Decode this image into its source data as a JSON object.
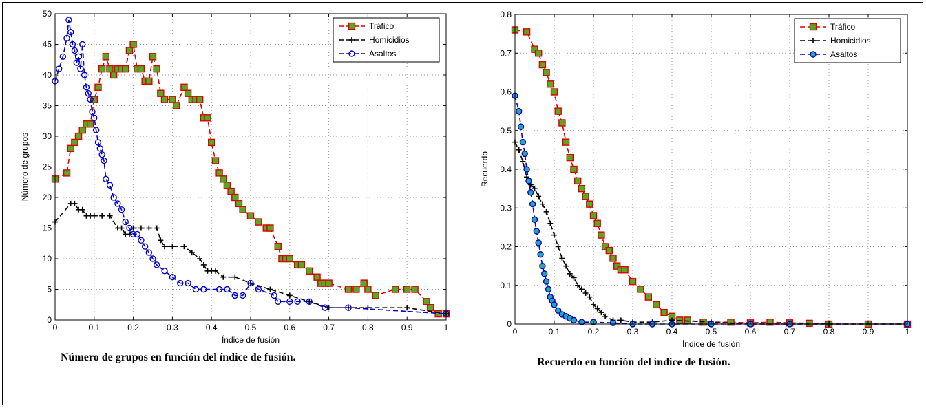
{
  "charts": {
    "left": {
      "caption": "Número de grupos en función del índice de fusión."
    },
    "right": {
      "caption": "Recuerdo en función del índice de fusión."
    }
  },
  "chart_data": [
    {
      "type": "line",
      "xlabel": "Índice de fusión",
      "ylabel": "Número de grupos",
      "xlim": [
        0,
        1
      ],
      "ylim": [
        0,
        50
      ],
      "xticks": [
        0,
        0.1,
        0.2,
        0.3,
        0.4,
        0.5,
        0.6,
        0.7,
        0.8,
        0.9,
        1
      ],
      "xtick_labels": [
        "0",
        "0.1",
        "0.2",
        "0.3",
        "0.4",
        "0.5",
        "0.6",
        "0.7",
        "0.8",
        "0.9",
        "1"
      ],
      "yticks": [
        0,
        5,
        10,
        15,
        20,
        25,
        30,
        35,
        40,
        45,
        50
      ],
      "ytick_labels": [
        "0",
        "5",
        "10",
        "15",
        "20",
        "25",
        "30",
        "35",
        "40",
        "45",
        "50"
      ],
      "grid": true,
      "legend": "top-right",
      "series": [
        {
          "name": "Tráfico",
          "color": "#dd0000",
          "marker": "square",
          "marker_fill": "#55aa22",
          "x": [
            0,
            0.03,
            0.04,
            0.05,
            0.06,
            0.07,
            0.08,
            0.09,
            0.1,
            0.11,
            0.12,
            0.13,
            0.14,
            0.15,
            0.16,
            0.17,
            0.18,
            0.19,
            0.2,
            0.21,
            0.22,
            0.23,
            0.24,
            0.25,
            0.26,
            0.27,
            0.28,
            0.3,
            0.31,
            0.33,
            0.34,
            0.35,
            0.36,
            0.37,
            0.38,
            0.39,
            0.4,
            0.41,
            0.42,
            0.43,
            0.44,
            0.45,
            0.46,
            0.47,
            0.48,
            0.5,
            0.52,
            0.54,
            0.55,
            0.57,
            0.58,
            0.59,
            0.6,
            0.62,
            0.63,
            0.65,
            0.67,
            0.68,
            0.69,
            0.7,
            0.75,
            0.77,
            0.79,
            0.8,
            0.82,
            0.87,
            0.9,
            0.92,
            0.95,
            0.96,
            0.98,
            1
          ],
          "values": [
            23,
            24,
            28,
            29,
            30,
            31,
            32,
            32,
            36,
            38,
            41,
            43,
            41,
            40,
            41,
            41,
            41,
            44,
            45,
            41,
            41,
            39,
            39,
            43,
            41,
            37,
            36,
            36,
            35,
            38,
            37,
            36,
            36,
            36,
            33,
            33,
            29,
            26,
            24,
            23,
            22,
            21,
            20,
            19,
            18,
            17,
            16,
            15,
            15,
            12,
            10,
            10,
            10,
            9,
            9,
            8,
            7,
            6,
            6,
            6,
            5,
            5,
            6,
            5,
            4,
            5,
            5,
            5,
            3,
            2,
            1,
            1
          ]
        },
        {
          "name": "Homicidios",
          "color": "#000000",
          "marker": "plus",
          "x": [
            0,
            0.04,
            0.05,
            0.06,
            0.07,
            0.08,
            0.09,
            0.1,
            0.12,
            0.14,
            0.16,
            0.17,
            0.18,
            0.19,
            0.2,
            0.22,
            0.24,
            0.26,
            0.27,
            0.28,
            0.3,
            0.33,
            0.35,
            0.37,
            0.38,
            0.39,
            0.4,
            0.41,
            0.43,
            0.46,
            0.5,
            0.55,
            0.6,
            0.65,
            0.7,
            0.75,
            0.8,
            0.9,
            1
          ],
          "values": [
            16,
            19,
            19,
            18,
            18,
            17,
            17,
            17,
            17,
            17,
            15,
            15,
            14,
            14,
            15,
            15,
            15,
            15,
            13,
            12,
            12,
            12,
            11,
            10,
            9,
            8,
            8,
            8,
            7,
            7,
            6,
            5,
            4,
            3,
            2,
            2,
            2,
            2,
            1
          ]
        },
        {
          "name": "Asaltos",
          "color": "#0000cc",
          "marker": "circle",
          "marker_fill": "none",
          "x": [
            0,
            0.01,
            0.02,
            0.03,
            0.035,
            0.04,
            0.045,
            0.05,
            0.055,
            0.06,
            0.065,
            0.07,
            0.075,
            0.08,
            0.085,
            0.09,
            0.095,
            0.1,
            0.105,
            0.11,
            0.115,
            0.12,
            0.125,
            0.13,
            0.14,
            0.15,
            0.16,
            0.17,
            0.18,
            0.19,
            0.2,
            0.21,
            0.22,
            0.23,
            0.24,
            0.25,
            0.26,
            0.28,
            0.3,
            0.32,
            0.34,
            0.36,
            0.38,
            0.42,
            0.44,
            0.46,
            0.48,
            0.5,
            0.52,
            0.56,
            0.57,
            0.6,
            0.62,
            0.65,
            0.69,
            0.75,
            1
          ],
          "values": [
            39,
            41,
            43,
            46,
            49,
            47,
            45,
            44,
            42,
            43,
            41,
            45,
            40,
            38,
            37,
            36,
            34,
            33,
            31,
            29,
            28,
            27,
            26,
            23,
            22,
            20,
            19,
            18,
            16,
            15,
            14,
            14,
            13,
            12,
            11,
            10,
            9,
            8,
            7,
            6,
            6,
            5,
            5,
            5,
            5,
            4,
            4,
            6,
            5,
            4,
            3,
            3,
            3,
            3,
            2,
            2,
            1
          ]
        }
      ]
    },
    {
      "type": "line",
      "xlabel": "Índice de fusión",
      "ylabel": "Recuerdo",
      "xlim": [
        0,
        1
      ],
      "ylim": [
        0,
        0.8
      ],
      "xticks": [
        0,
        0.1,
        0.2,
        0.3,
        0.4,
        0.5,
        0.6,
        0.7,
        0.8,
        0.9,
        1
      ],
      "xtick_labels": [
        "0",
        "0.1",
        "0.2",
        "0.3",
        "0.4",
        "0.5",
        "0.6",
        "0.7",
        "0.8",
        "0.9",
        "1"
      ],
      "yticks": [
        0,
        0.1,
        0.2,
        0.3,
        0.4,
        0.5,
        0.6,
        0.7,
        0.8
      ],
      "ytick_labels": [
        "0",
        "0.1",
        "0.2",
        "0.3",
        "0.4",
        "0.5",
        "0.6",
        "0.7",
        "0.8"
      ],
      "grid": true,
      "legend": "top-right",
      "series": [
        {
          "name": "Tráfico",
          "color": "#dd0000",
          "marker": "square",
          "marker_fill": "#55aa22",
          "x": [
            0,
            0.03,
            0.05,
            0.06,
            0.07,
            0.08,
            0.09,
            0.1,
            0.11,
            0.12,
            0.13,
            0.14,
            0.15,
            0.16,
            0.17,
            0.18,
            0.19,
            0.2,
            0.21,
            0.22,
            0.23,
            0.24,
            0.25,
            0.26,
            0.27,
            0.28,
            0.3,
            0.32,
            0.34,
            0.36,
            0.38,
            0.4,
            0.42,
            0.44,
            0.48,
            0.55,
            0.6,
            0.65,
            0.7,
            0.75,
            0.8,
            0.9,
            1
          ],
          "values": [
            0.76,
            0.755,
            0.71,
            0.7,
            0.67,
            0.65,
            0.62,
            0.6,
            0.55,
            0.52,
            0.47,
            0.43,
            0.4,
            0.37,
            0.35,
            0.33,
            0.31,
            0.28,
            0.26,
            0.23,
            0.2,
            0.19,
            0.17,
            0.15,
            0.14,
            0.14,
            0.11,
            0.09,
            0.07,
            0.05,
            0.03,
            0.02,
            0.01,
            0.01,
            0.005,
            0.005,
            0.003,
            0.005,
            0.003,
            0.002,
            0,
            0,
            0
          ]
        },
        {
          "name": "Homicidios",
          "color": "#000000",
          "marker": "plus",
          "x": [
            0,
            0.01,
            0.02,
            0.03,
            0.04,
            0.05,
            0.06,
            0.07,
            0.08,
            0.09,
            0.1,
            0.11,
            0.12,
            0.13,
            0.14,
            0.15,
            0.16,
            0.17,
            0.18,
            0.19,
            0.2,
            0.21,
            0.22,
            0.23,
            0.25,
            0.27,
            0.3,
            0.35,
            0.4,
            0.5,
            0.6,
            0.7,
            0.8,
            1
          ],
          "values": [
            0.47,
            0.45,
            0.42,
            0.38,
            0.36,
            0.35,
            0.33,
            0.31,
            0.29,
            0.26,
            0.23,
            0.2,
            0.17,
            0.15,
            0.13,
            0.12,
            0.1,
            0.09,
            0.08,
            0.07,
            0.05,
            0.04,
            0.03,
            0.02,
            0.01,
            0.01,
            0.005,
            0.005,
            0.01,
            0.005,
            0,
            0,
            0,
            0
          ]
        },
        {
          "name": "Asaltos",
          "color": "#0000cc",
          "marker": "circle",
          "marker_fill": "#22aaaa",
          "x": [
            0,
            0.01,
            0.015,
            0.02,
            0.025,
            0.03,
            0.035,
            0.04,
            0.045,
            0.05,
            0.055,
            0.06,
            0.065,
            0.07,
            0.075,
            0.08,
            0.085,
            0.09,
            0.095,
            0.1,
            0.11,
            0.12,
            0.13,
            0.14,
            0.15,
            0.17,
            0.2,
            0.25,
            0.3,
            0.35,
            0.4,
            0.5,
            0.6,
            0.7,
            1
          ],
          "values": [
            0.59,
            0.55,
            0.51,
            0.47,
            0.44,
            0.4,
            0.37,
            0.34,
            0.31,
            0.27,
            0.24,
            0.21,
            0.18,
            0.15,
            0.13,
            0.11,
            0.09,
            0.07,
            0.06,
            0.05,
            0.035,
            0.025,
            0.02,
            0.015,
            0.01,
            0.005,
            0.005,
            0.003,
            0,
            0,
            0,
            0,
            0,
            0,
            0
          ]
        }
      ]
    }
  ]
}
